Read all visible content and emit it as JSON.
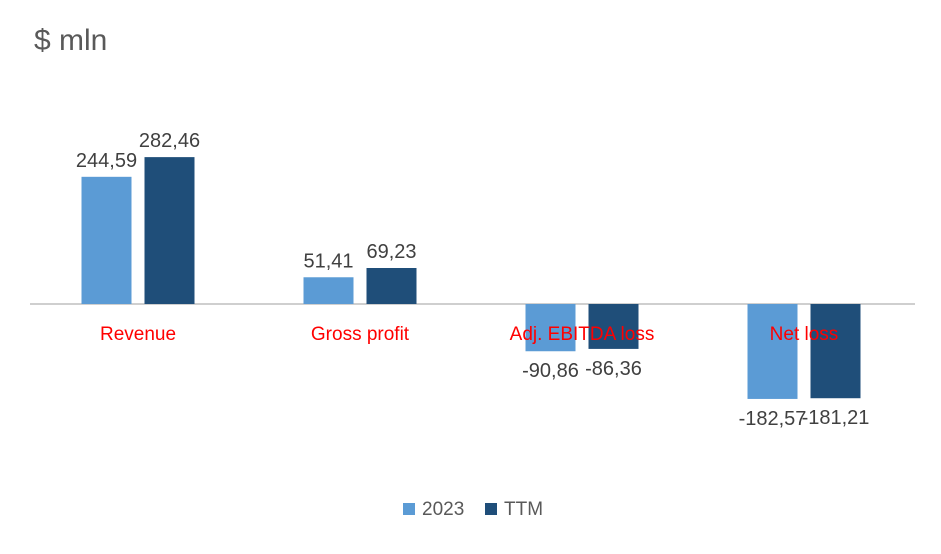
{
  "chart_data": {
    "type": "bar",
    "title": "$ mln",
    "xlabel": "",
    "ylabel": "",
    "categories": [
      "Revenue",
      "Gross profit",
      "Adj. EBITDA loss",
      "Net loss"
    ],
    "series": [
      {
        "name": "2023",
        "values": [
          244.59,
          51.41,
          -90.86,
          -182.57
        ],
        "labels": [
          "244,59",
          "51,41",
          "-90,86",
          "-182,57"
        ]
      },
      {
        "name": "TTM",
        "values": [
          282.46,
          69.23,
          -86.36,
          -181.21
        ],
        "labels": [
          "282,46",
          "69,23",
          "-86,36",
          "-181,21"
        ]
      }
    ],
    "ylim": [
      -250,
      300
    ],
    "grid": false,
    "legend": "bottom-center",
    "colors": {
      "2023": "#5b9bd5",
      "TTM": "#1f4e79",
      "category_labels": "#ff0000",
      "axis": "#bfbfbf",
      "data_labels": "#404040"
    }
  }
}
